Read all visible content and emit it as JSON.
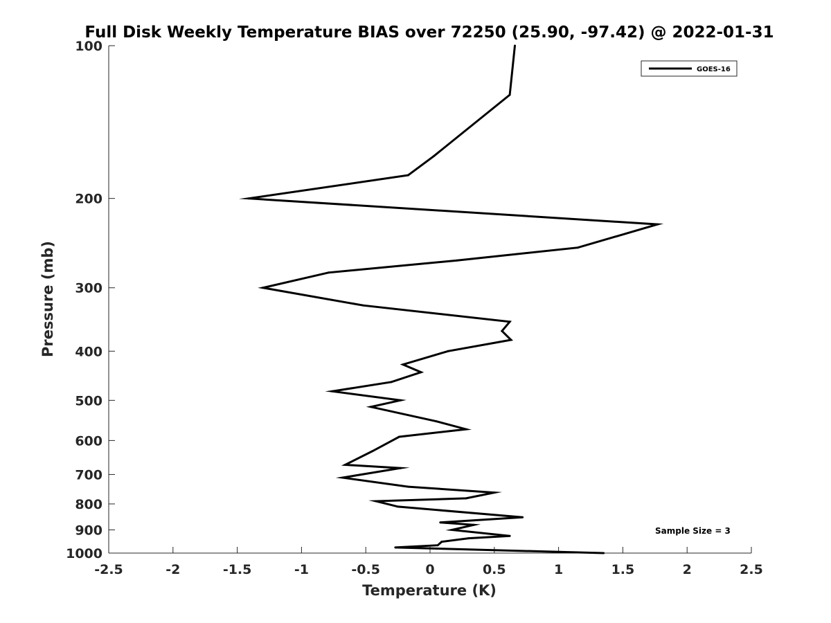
{
  "chart_data": {
    "type": "line",
    "title": "Full Disk Weekly Temperature BIAS over 72250 (25.90, -97.42) @ 2022-01-31",
    "xlabel": "Temperature (K)",
    "ylabel": "Pressure (mb)",
    "xlim": [
      -2.5,
      2.5
    ],
    "ylim": [
      1000,
      100
    ],
    "y_scale": "log",
    "x_ticks": [
      "-2.5",
      "-2",
      "-1.5",
      "-1",
      "-0.5",
      "0",
      "0.5",
      "1",
      "1.5",
      "2",
      "2.5"
    ],
    "y_ticks": [
      "100",
      "200",
      "300",
      "400",
      "500",
      "600",
      "700",
      "800",
      "900",
      "1000"
    ],
    "grid": false,
    "legend": {
      "position": "top-right",
      "entries": [
        "GOES-16"
      ]
    },
    "annotation": "Sample Size = 3",
    "series": [
      {
        "name": "GOES-16",
        "color": "#000000",
        "points": [
          {
            "x": 0.66,
            "p": 100
          },
          {
            "x": 0.62,
            "p": 125
          },
          {
            "x": 0.03,
            "p": 165
          },
          {
            "x": -0.17,
            "p": 180
          },
          {
            "x": -1.41,
            "p": 200
          },
          {
            "x": 1.77,
            "p": 225
          },
          {
            "x": 1.15,
            "p": 250
          },
          {
            "x": 0.21,
            "p": 265
          },
          {
            "x": -0.79,
            "p": 280
          },
          {
            "x": -1.3,
            "p": 300
          },
          {
            "x": -0.52,
            "p": 325
          },
          {
            "x": 0.62,
            "p": 350
          },
          {
            "x": 0.56,
            "p": 365
          },
          {
            "x": 0.63,
            "p": 380
          },
          {
            "x": 0.14,
            "p": 400
          },
          {
            "x": -0.21,
            "p": 425
          },
          {
            "x": -0.07,
            "p": 440
          },
          {
            "x": -0.3,
            "p": 460
          },
          {
            "x": -0.76,
            "p": 480
          },
          {
            "x": -0.23,
            "p": 500
          },
          {
            "x": -0.46,
            "p": 515
          },
          {
            "x": 0.05,
            "p": 550
          },
          {
            "x": 0.28,
            "p": 570
          },
          {
            "x": -0.24,
            "p": 590
          },
          {
            "x": -0.45,
            "p": 630
          },
          {
            "x": -0.66,
            "p": 670
          },
          {
            "x": -0.23,
            "p": 680
          },
          {
            "x": -0.68,
            "p": 710
          },
          {
            "x": -0.17,
            "p": 740
          },
          {
            "x": 0.5,
            "p": 760
          },
          {
            "x": 0.28,
            "p": 780
          },
          {
            "x": -0.42,
            "p": 790
          },
          {
            "x": -0.25,
            "p": 810
          },
          {
            "x": 0.72,
            "p": 850
          },
          {
            "x": 0.08,
            "p": 870
          },
          {
            "x": 0.34,
            "p": 880
          },
          {
            "x": 0.17,
            "p": 900
          },
          {
            "x": 0.62,
            "p": 925
          },
          {
            "x": 0.3,
            "p": 935
          },
          {
            "x": 0.09,
            "p": 950
          },
          {
            "x": 0.06,
            "p": 965
          },
          {
            "x": -0.27,
            "p": 975
          },
          {
            "x": 1.35,
            "p": 1000
          }
        ]
      }
    ]
  }
}
